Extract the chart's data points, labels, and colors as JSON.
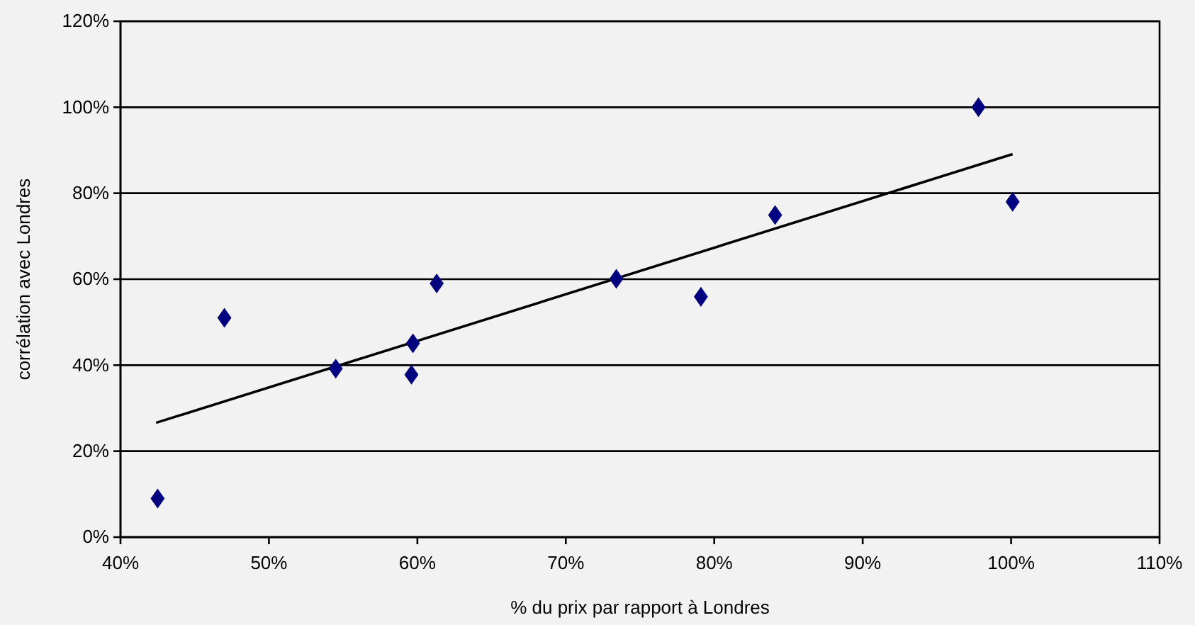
{
  "chart_data": {
    "type": "scatter",
    "xlabel": "% du prix par rapport à Londres",
    "ylabel": "corrélation avec Londres",
    "xlim": [
      40,
      110
    ],
    "xticks": [
      {
        "value": 40,
        "label": "40%"
      },
      {
        "value": 50,
        "label": "50%"
      },
      {
        "value": 60,
        "label": "60%"
      },
      {
        "value": 70,
        "label": "70%"
      },
      {
        "value": 80,
        "label": "80%"
      },
      {
        "value": 90,
        "label": "90%"
      },
      {
        "value": 100,
        "label": "100%"
      },
      {
        "value": 110,
        "label": "110%"
      }
    ],
    "ylim": [
      0,
      120
    ],
    "yticks": [
      {
        "value": 0,
        "label": "0%"
      },
      {
        "value": 20,
        "label": "20%"
      },
      {
        "value": 40,
        "label": "40%"
      },
      {
        "value": 60,
        "label": "60%"
      },
      {
        "value": 80,
        "label": "80%"
      },
      {
        "value": 100,
        "label": "100%"
      },
      {
        "value": 120,
        "label": "120%"
      }
    ],
    "grid": "y",
    "marker": "diamond",
    "series": [
      {
        "color": "#000080",
        "x": [
          42.5,
          47,
          54.5,
          59.7,
          59.6,
          61.3,
          73.4,
          79.1,
          84.1,
          97.8,
          100.1
        ],
        "values": [
          9,
          51,
          39.2,
          45.1,
          37.8,
          59,
          60.1,
          55.9,
          74.9,
          100,
          78
        ]
      },
      {
        "type": "line",
        "marker": "none",
        "color": "#000000",
        "x": [
          42.4,
          100.1
        ],
        "values": [
          26.6,
          89.1
        ]
      }
    ]
  }
}
